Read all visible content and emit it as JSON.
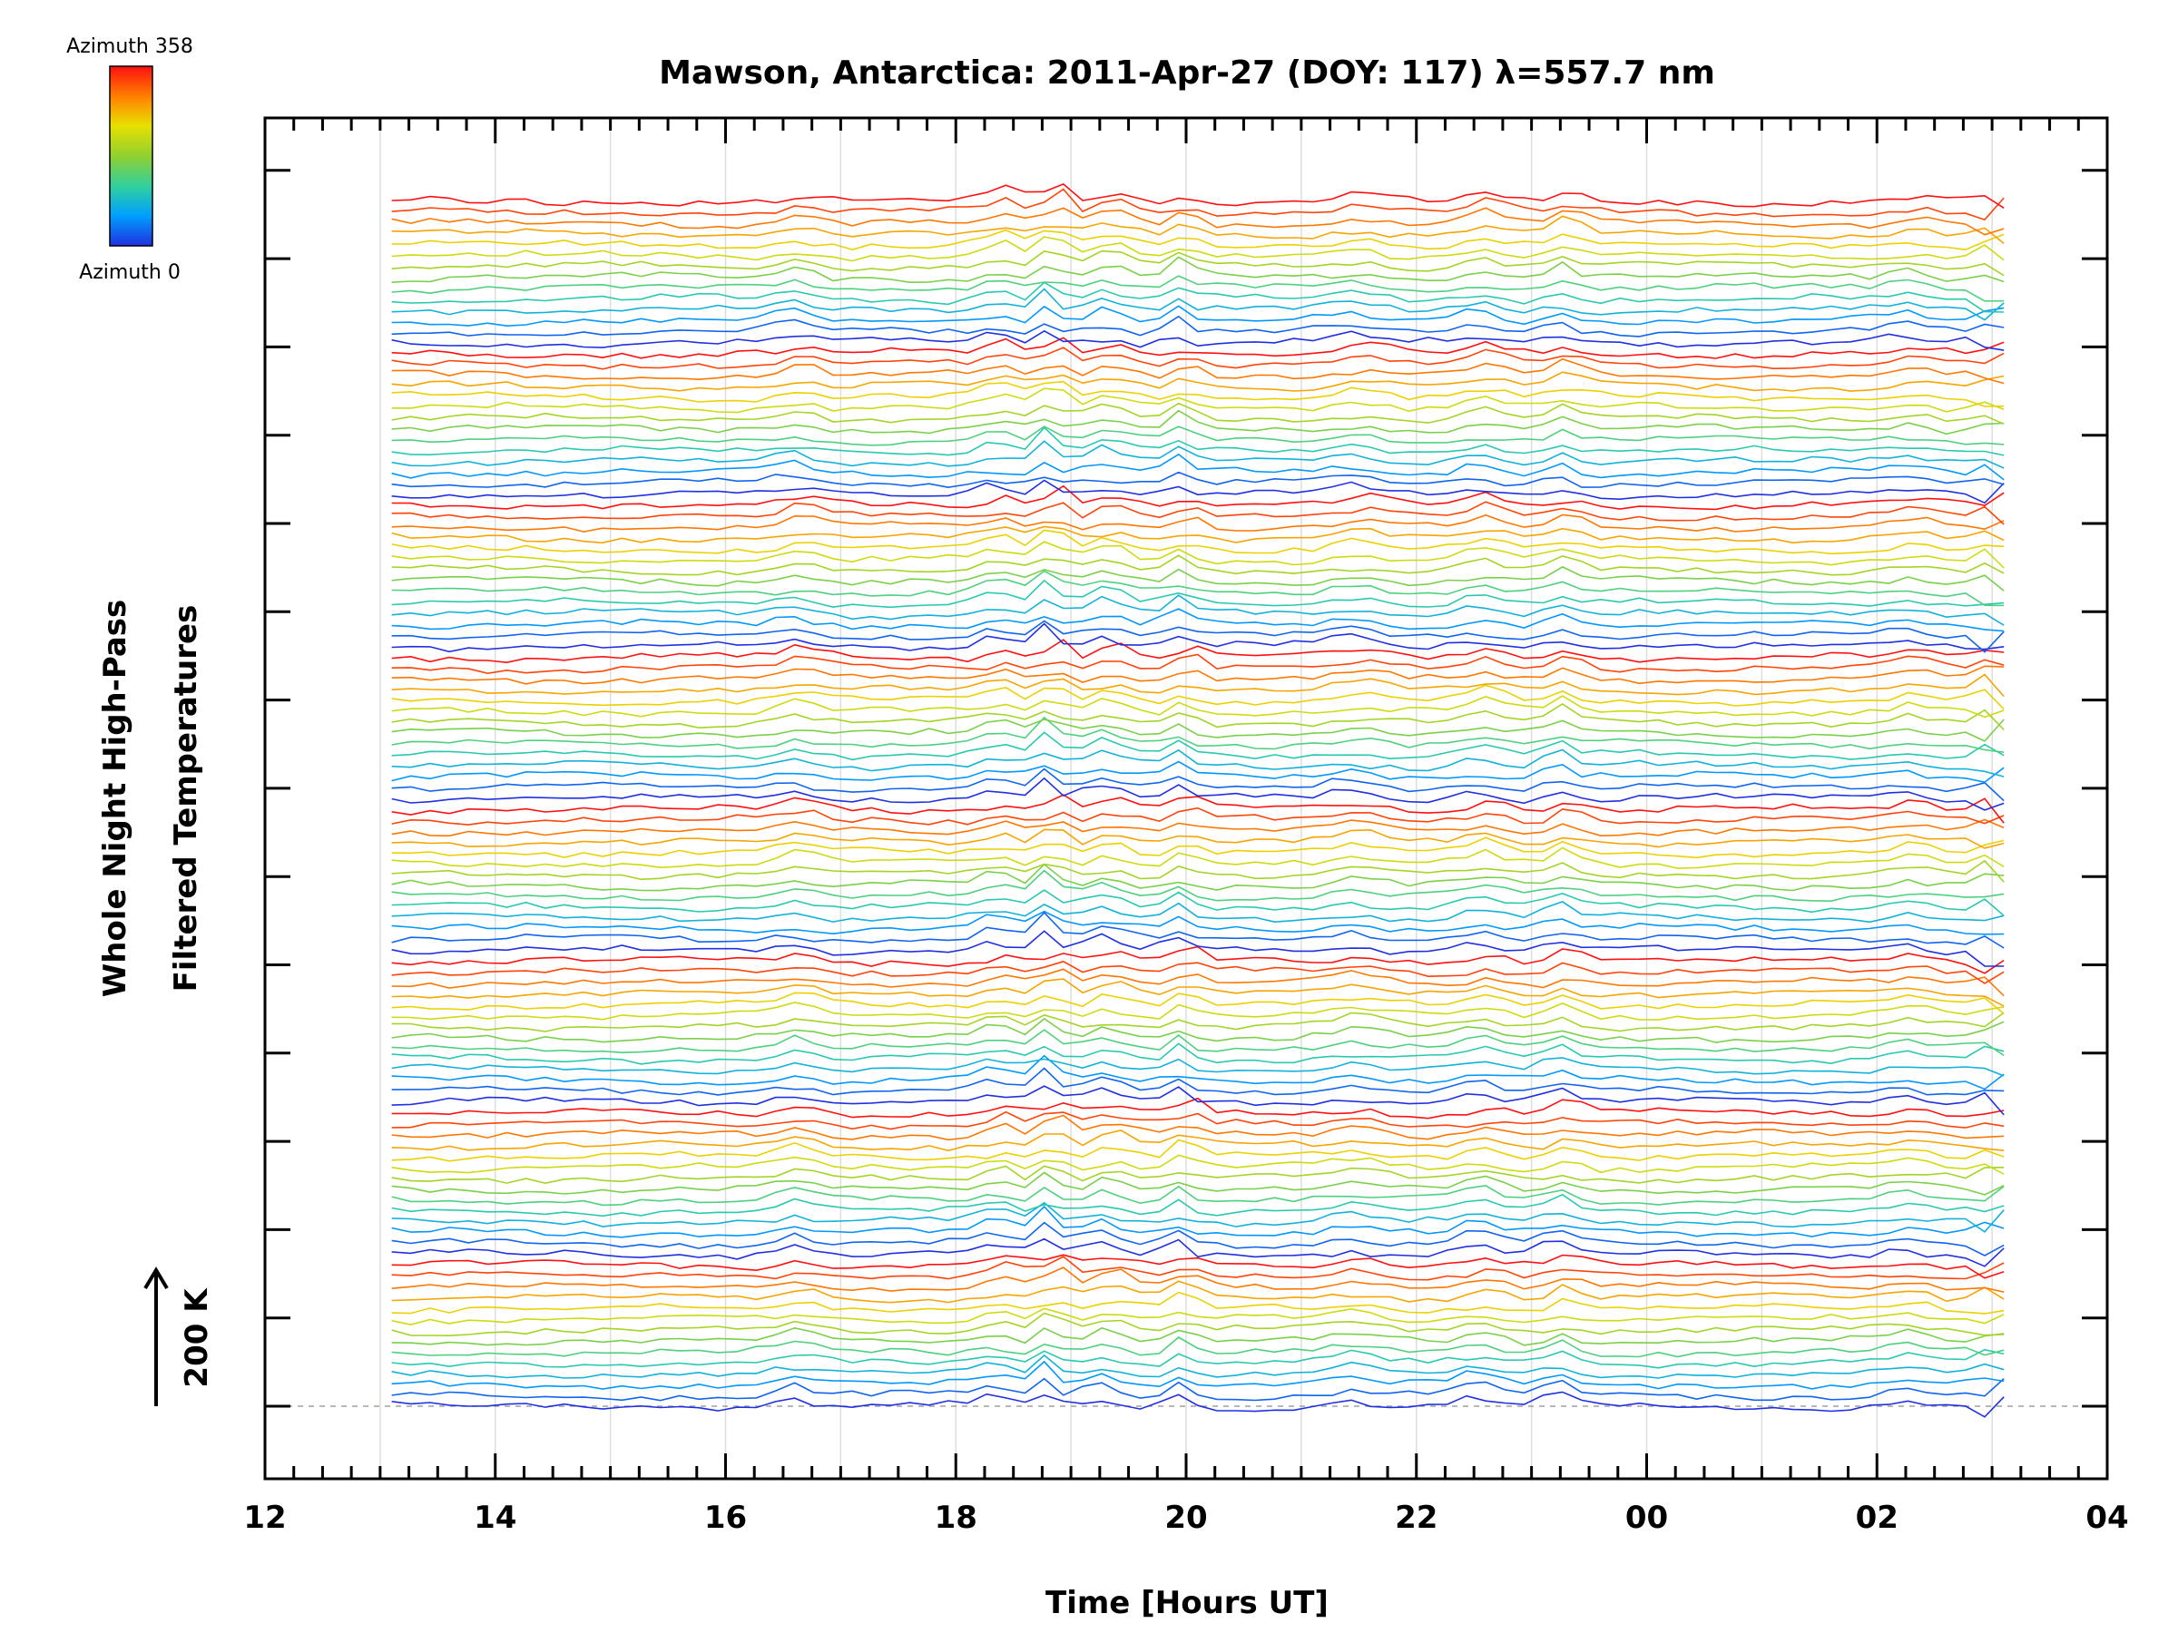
{
  "chart_data": {
    "type": "line",
    "title": "Mawson, Antarctica: 2011-Apr-27 (DOY: 117) λ=557.7 nm",
    "xlabel": "Time [Hours UT]",
    "ylabel_line1": "Whole Night High-Pass",
    "ylabel_line2": "Filtered Temperatures",
    "x_tick_labels": [
      "12",
      "14",
      "16",
      "18",
      "20",
      "22",
      "00",
      "02",
      "04"
    ],
    "x_range_hours": [
      12,
      28
    ],
    "y_scale_marker": "200 K",
    "y_major_tick_count": 15,
    "colorbar": {
      "top_label": "Azimuth 358",
      "bottom_label": "Azimuth 0",
      "colors": [
        "#2030e0",
        "#00a0ff",
        "#30d0a0",
        "#90d030",
        "#e8e000",
        "#ff8000",
        "#ff1010"
      ]
    },
    "series_summary": {
      "count": 112,
      "traces_per_group": 14,
      "group_count": 8,
      "start_hour": 13.1,
      "end_hour": 27.25,
      "sample_interval_hours": 0.1667,
      "baseline_dashed": true
    }
  }
}
